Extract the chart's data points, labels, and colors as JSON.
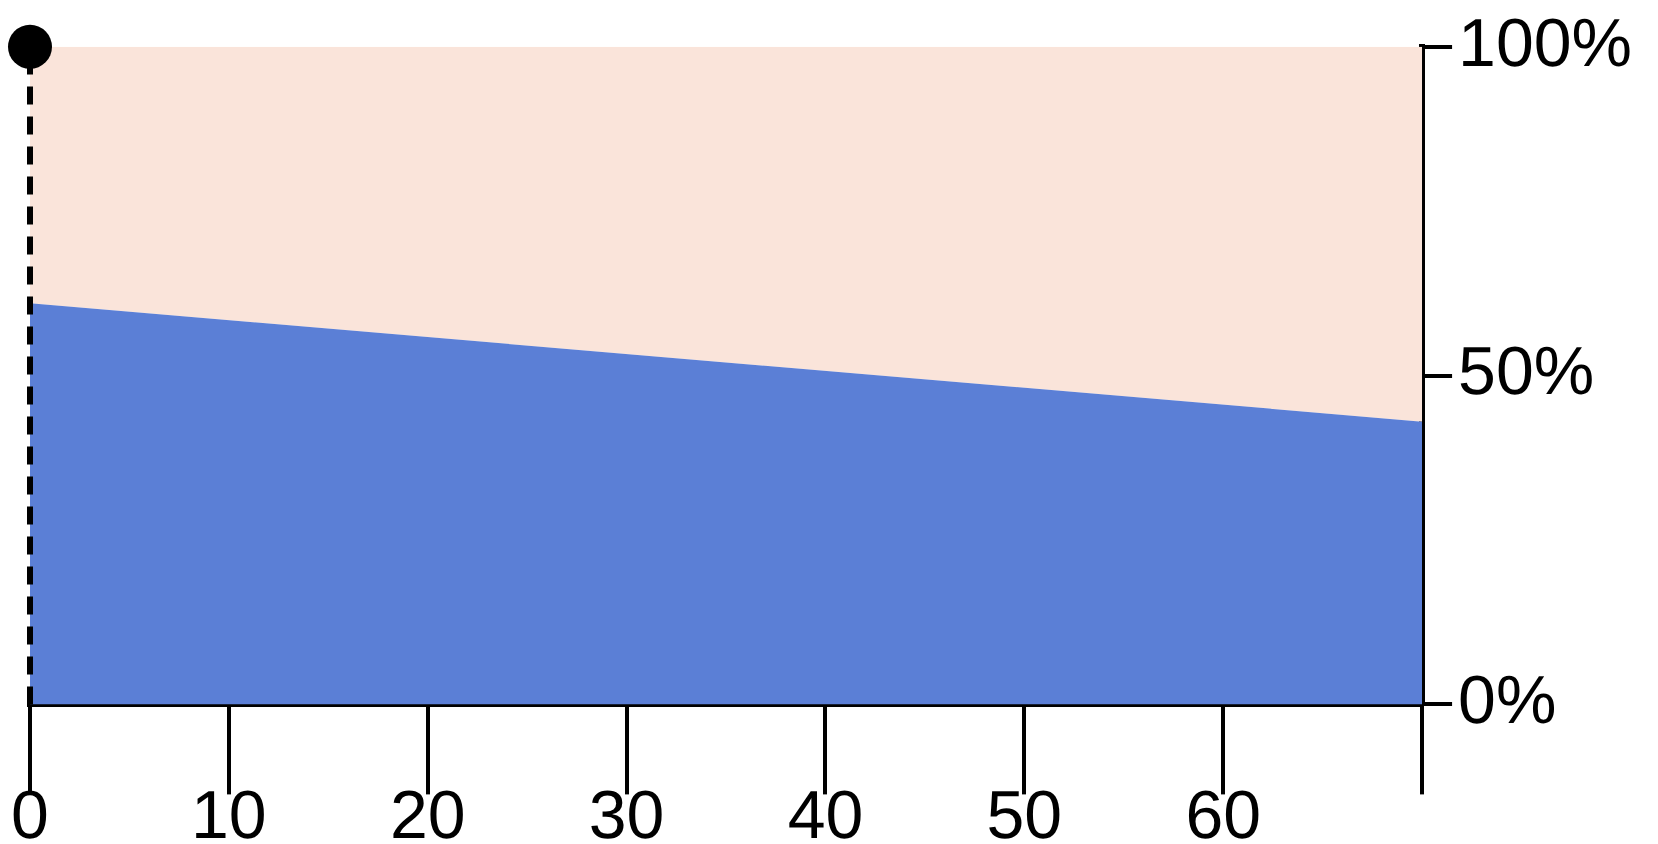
{
  "chart_data": {
    "type": "area",
    "stacked": true,
    "x": [
      0,
      70
    ],
    "series": [
      {
        "color": "#5b7fd6",
        "values": [
          61,
          43
        ]
      },
      {
        "color": "#fae4da",
        "values": [
          39,
          57
        ]
      }
    ],
    "xlim": [
      0,
      70
    ],
    "xticks": [
      0,
      10,
      20,
      30,
      40,
      50,
      60,
      {
        "value": 70,
        "label": null
      }
    ],
    "ylim": [
      0,
      100
    ],
    "yticks": [
      {
        "value": 0,
        "label": "0%"
      },
      {
        "value": 50,
        "label": "50%"
      },
      {
        "value": 100,
        "label": "100%"
      }
    ],
    "grid": false,
    "legend": false,
    "ref_lines": [
      {
        "axis": "x",
        "value": 0,
        "label": null,
        "color": "#000000",
        "line_style": "dashed"
      }
    ]
  }
}
